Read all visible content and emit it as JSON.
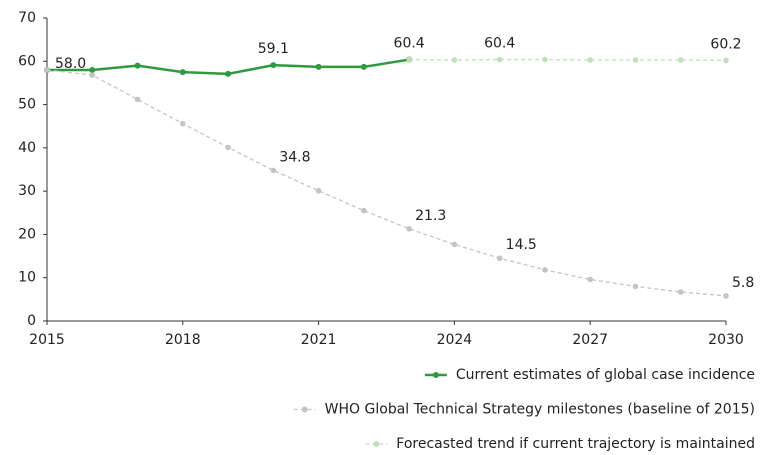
{
  "chart_data": {
    "type": "line",
    "x": [
      2015,
      2016,
      2017,
      2018,
      2019,
      2020,
      2021,
      2022,
      2023,
      2024,
      2025,
      2026,
      2027,
      2028,
      2029,
      2030
    ],
    "xlim": [
      2015,
      2030
    ],
    "xticks": [
      2015,
      2018,
      2021,
      2024,
      2027,
      2030
    ],
    "ylim": [
      0,
      70
    ],
    "yticks": [
      0,
      10,
      20,
      30,
      40,
      50,
      60,
      70
    ],
    "legend": "bottom-right",
    "series": [
      {
        "name": "Current estimates of global case incidence",
        "color": "#2e9a3e",
        "line_style": "solid",
        "values": [
          58.0,
          58.0,
          59.0,
          57.5,
          57.1,
          59.1,
          58.7,
          58.7,
          60.4,
          null,
          null,
          null,
          null,
          null,
          null,
          null
        ],
        "value_labels": [
          "58.0",
          null,
          null,
          null,
          null,
          "59.1",
          null,
          null,
          "60.4",
          null,
          null,
          null,
          null,
          null,
          null,
          null
        ]
      },
      {
        "name": "WHO Global Technical Strategy milestones (baseline of 2015)",
        "color": "#c4c4c4",
        "line_style": "dashed",
        "values": [
          58.0,
          56.8,
          51.2,
          45.6,
          40.1,
          34.8,
          30.1,
          25.5,
          21.3,
          17.7,
          14.5,
          11.8,
          9.6,
          8.0,
          6.7,
          5.8
        ],
        "value_labels": [
          null,
          null,
          null,
          null,
          null,
          "34.8",
          null,
          null,
          "21.3",
          null,
          "14.5",
          null,
          null,
          null,
          null,
          "5.8"
        ]
      },
      {
        "name": "Forecasted trend if current trajectory is maintained",
        "color": "#bfe0ba",
        "line_style": "dashed",
        "values": [
          null,
          null,
          null,
          null,
          null,
          null,
          null,
          null,
          60.4,
          60.3,
          60.4,
          60.4,
          60.3,
          60.3,
          60.3,
          60.2
        ],
        "value_labels": [
          null,
          null,
          null,
          null,
          null,
          null,
          null,
          null,
          null,
          null,
          "60.4",
          null,
          null,
          null,
          null,
          "60.2"
        ]
      }
    ]
  }
}
